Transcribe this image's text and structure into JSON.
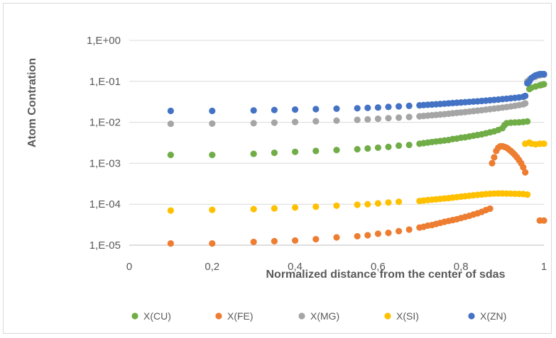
{
  "chart_data": {
    "type": "scatter",
    "xlabel": "Normalized distance from the center of sdas",
    "ylabel": "Atom Contration",
    "xlim": [
      0,
      1
    ],
    "ylim": [
      1e-05,
      1
    ],
    "yscale": "log",
    "x_ticks": [
      "0",
      "0,2",
      "0,4",
      "0,6",
      "0,8",
      "1"
    ],
    "x_tick_values": [
      0,
      0.2,
      0.4,
      0.6,
      0.8,
      1
    ],
    "y_ticks": [
      "1,E-05",
      "1,E-04",
      "1,E-03",
      "1,E-02",
      "1,E-01",
      "1,E+00"
    ],
    "y_tick_values": [
      1e-05,
      0.0001,
      0.001,
      0.01,
      0.1,
      1
    ],
    "grid": "horizontal",
    "legend_position": "bottom",
    "series": [
      {
        "name": "X(CU)",
        "color": "#70ad47",
        "points": [
          [
            0.1,
            0.0016
          ],
          [
            0.2,
            0.0016
          ],
          [
            0.3,
            0.0017
          ],
          [
            0.35,
            0.0018
          ],
          [
            0.4,
            0.0019
          ],
          [
            0.45,
            0.002
          ],
          [
            0.5,
            0.0021
          ],
          [
            0.55,
            0.0022
          ],
          [
            0.575,
            0.0023
          ],
          [
            0.6,
            0.0024
          ],
          [
            0.625,
            0.0025
          ],
          [
            0.65,
            0.0027
          ],
          [
            0.675,
            0.0028
          ],
          [
            0.7,
            0.003
          ],
          [
            0.71,
            0.0031
          ],
          [
            0.72,
            0.0032
          ],
          [
            0.73,
            0.0033
          ],
          [
            0.74,
            0.0034
          ],
          [
            0.75,
            0.0035
          ],
          [
            0.76,
            0.0036
          ],
          [
            0.77,
            0.0037
          ],
          [
            0.78,
            0.0039
          ],
          [
            0.79,
            0.004
          ],
          [
            0.8,
            0.0042
          ],
          [
            0.81,
            0.0043
          ],
          [
            0.82,
            0.0045
          ],
          [
            0.83,
            0.0047
          ],
          [
            0.84,
            0.0049
          ],
          [
            0.85,
            0.0051
          ],
          [
            0.86,
            0.0054
          ],
          [
            0.87,
            0.0057
          ],
          [
            0.88,
            0.006
          ],
          [
            0.89,
            0.0065
          ],
          [
            0.9,
            0.0072
          ],
          [
            0.905,
            0.0085
          ],
          [
            0.91,
            0.0095
          ],
          [
            0.92,
            0.0098
          ],
          [
            0.93,
            0.0099
          ],
          [
            0.94,
            0.01
          ],
          [
            0.95,
            0.0102
          ],
          [
            0.96,
            0.0105
          ],
          [
            0.965,
            0.065
          ],
          [
            0.97,
            0.07
          ],
          [
            0.98,
            0.075
          ],
          [
            0.99,
            0.08
          ],
          [
            0.995,
            0.082
          ],
          [
            1.0,
            0.085
          ]
        ]
      },
      {
        "name": "X(FE)",
        "color": "#ed7d31",
        "points": [
          [
            0.1,
            1.1e-05
          ],
          [
            0.2,
            1.1e-05
          ],
          [
            0.3,
            1.2e-05
          ],
          [
            0.35,
            1.25e-05
          ],
          [
            0.4,
            1.3e-05
          ],
          [
            0.45,
            1.4e-05
          ],
          [
            0.5,
            1.55e-05
          ],
          [
            0.55,
            1.65e-05
          ],
          [
            0.575,
            1.75e-05
          ],
          [
            0.6,
            1.9e-05
          ],
          [
            0.625,
            2e-05
          ],
          [
            0.65,
            2.2e-05
          ],
          [
            0.675,
            2.4e-05
          ],
          [
            0.7,
            2.7e-05
          ],
          [
            0.71,
            2.8e-05
          ],
          [
            0.72,
            3e-05
          ],
          [
            0.73,
            3.1e-05
          ],
          [
            0.74,
            3.3e-05
          ],
          [
            0.75,
            3.5e-05
          ],
          [
            0.76,
            3.7e-05
          ],
          [
            0.77,
            3.9e-05
          ],
          [
            0.78,
            4.1e-05
          ],
          [
            0.79,
            4.3e-05
          ],
          [
            0.8,
            4.6e-05
          ],
          [
            0.81,
            4.9e-05
          ],
          [
            0.82,
            5.2e-05
          ],
          [
            0.83,
            5.6e-05
          ],
          [
            0.84,
            6e-05
          ],
          [
            0.85,
            6.5e-05
          ],
          [
            0.86,
            7.2e-05
          ],
          [
            0.87,
            7.8e-05
          ],
          [
            0.875,
            0.001
          ],
          [
            0.88,
            0.0014
          ],
          [
            0.885,
            0.002
          ],
          [
            0.89,
            0.0024
          ],
          [
            0.895,
            0.0026
          ],
          [
            0.9,
            0.0026
          ],
          [
            0.905,
            0.0025
          ],
          [
            0.91,
            0.0024
          ],
          [
            0.915,
            0.0022
          ],
          [
            0.92,
            0.002
          ],
          [
            0.925,
            0.0018
          ],
          [
            0.93,
            0.0016
          ],
          [
            0.935,
            0.0014
          ],
          [
            0.94,
            0.0012
          ],
          [
            0.945,
            0.001
          ],
          [
            0.95,
            0.0008
          ],
          [
            0.955,
            0.0006
          ],
          [
            0.99,
            4e-05
          ],
          [
            1.0,
            4e-05
          ]
        ]
      },
      {
        "name": "X(MG)",
        "color": "#a5a5a5",
        "points": [
          [
            0.1,
            0.0092
          ],
          [
            0.2,
            0.0093
          ],
          [
            0.3,
            0.0095
          ],
          [
            0.35,
            0.0098
          ],
          [
            0.4,
            0.0102
          ],
          [
            0.45,
            0.0106
          ],
          [
            0.5,
            0.011
          ],
          [
            0.55,
            0.0115
          ],
          [
            0.575,
            0.0118
          ],
          [
            0.6,
            0.0122
          ],
          [
            0.625,
            0.0126
          ],
          [
            0.65,
            0.013
          ],
          [
            0.675,
            0.0135
          ],
          [
            0.7,
            0.014
          ],
          [
            0.71,
            0.0143
          ],
          [
            0.72,
            0.0146
          ],
          [
            0.73,
            0.0149
          ],
          [
            0.74,
            0.0152
          ],
          [
            0.75,
            0.0155
          ],
          [
            0.76,
            0.0158
          ],
          [
            0.77,
            0.0162
          ],
          [
            0.78,
            0.0166
          ],
          [
            0.79,
            0.017
          ],
          [
            0.8,
            0.0174
          ],
          [
            0.81,
            0.0178
          ],
          [
            0.82,
            0.0183
          ],
          [
            0.83,
            0.0188
          ],
          [
            0.84,
            0.0193
          ],
          [
            0.85,
            0.0198
          ],
          [
            0.86,
            0.0204
          ],
          [
            0.87,
            0.021
          ],
          [
            0.88,
            0.0216
          ],
          [
            0.89,
            0.0222
          ],
          [
            0.9,
            0.0229
          ],
          [
            0.91,
            0.0236
          ],
          [
            0.92,
            0.0244
          ],
          [
            0.93,
            0.0253
          ],
          [
            0.94,
            0.0263
          ],
          [
            0.95,
            0.0275
          ],
          [
            0.955,
            0.029
          ],
          [
            0.96,
            0.1
          ],
          [
            0.965,
            0.11
          ],
          [
            0.97,
            0.12
          ],
          [
            0.98,
            0.13
          ],
          [
            0.99,
            0.14
          ],
          [
            1.0,
            0.145
          ]
        ]
      },
      {
        "name": "X(SI)",
        "color": "#ffc000",
        "points": [
          [
            0.1,
            7e-05
          ],
          [
            0.2,
            7.3e-05
          ],
          [
            0.3,
            7.6e-05
          ],
          [
            0.35,
            7.9e-05
          ],
          [
            0.4,
            8.3e-05
          ],
          [
            0.45,
            8.7e-05
          ],
          [
            0.5,
            9.2e-05
          ],
          [
            0.55,
            9.7e-05
          ],
          [
            0.575,
            0.0001
          ],
          [
            0.6,
            0.000105
          ],
          [
            0.625,
            0.00011
          ],
          [
            0.65,
            0.000115
          ],
          [
            0.7,
            0.00012
          ],
          [
            0.71,
            0.000123
          ],
          [
            0.72,
            0.000126
          ],
          [
            0.73,
            0.000129
          ],
          [
            0.74,
            0.000132
          ],
          [
            0.75,
            0.000135
          ],
          [
            0.76,
            0.000138
          ],
          [
            0.77,
            0.000141
          ],
          [
            0.78,
            0.000145
          ],
          [
            0.79,
            0.000149
          ],
          [
            0.8,
            0.000153
          ],
          [
            0.81,
            0.000157
          ],
          [
            0.82,
            0.000161
          ],
          [
            0.83,
            0.000165
          ],
          [
            0.84,
            0.000169
          ],
          [
            0.85,
            0.000173
          ],
          [
            0.86,
            0.000177
          ],
          [
            0.87,
            0.00018
          ],
          [
            0.88,
            0.000182
          ],
          [
            0.89,
            0.000183
          ],
          [
            0.9,
            0.000183
          ],
          [
            0.91,
            0.000182
          ],
          [
            0.92,
            0.000181
          ],
          [
            0.93,
            0.00018
          ],
          [
            0.94,
            0.000179
          ],
          [
            0.95,
            0.000178
          ],
          [
            0.96,
            0.000172
          ],
          [
            0.955,
            0.003
          ],
          [
            0.965,
            0.0032
          ],
          [
            0.97,
            0.003
          ],
          [
            0.98,
            0.0029
          ],
          [
            0.99,
            0.003
          ],
          [
            1.0,
            0.003
          ]
        ]
      },
      {
        "name": "X(ZN)",
        "color": "#4472c4",
        "points": [
          [
            0.1,
            0.019
          ],
          [
            0.2,
            0.019
          ],
          [
            0.3,
            0.0195
          ],
          [
            0.35,
            0.02
          ],
          [
            0.4,
            0.0205
          ],
          [
            0.45,
            0.021
          ],
          [
            0.5,
            0.0215
          ],
          [
            0.55,
            0.022
          ],
          [
            0.575,
            0.0225
          ],
          [
            0.6,
            0.023
          ],
          [
            0.625,
            0.0238
          ],
          [
            0.65,
            0.0245
          ],
          [
            0.675,
            0.0252
          ],
          [
            0.7,
            0.026
          ],
          [
            0.71,
            0.0264
          ],
          [
            0.72,
            0.0268
          ],
          [
            0.73,
            0.0272
          ],
          [
            0.74,
            0.0276
          ],
          [
            0.75,
            0.028
          ],
          [
            0.76,
            0.0285
          ],
          [
            0.77,
            0.029
          ],
          [
            0.78,
            0.0295
          ],
          [
            0.79,
            0.03
          ],
          [
            0.8,
            0.0305
          ],
          [
            0.81,
            0.031
          ],
          [
            0.82,
            0.0315
          ],
          [
            0.83,
            0.032
          ],
          [
            0.84,
            0.0326
          ],
          [
            0.85,
            0.0332
          ],
          [
            0.86,
            0.0338
          ],
          [
            0.87,
            0.0345
          ],
          [
            0.88,
            0.0352
          ],
          [
            0.89,
            0.036
          ],
          [
            0.9,
            0.0368
          ],
          [
            0.91,
            0.0376
          ],
          [
            0.92,
            0.0385
          ],
          [
            0.93,
            0.0395
          ],
          [
            0.94,
            0.0405
          ],
          [
            0.95,
            0.042
          ],
          [
            0.955,
            0.044
          ],
          [
            0.96,
            0.09
          ],
          [
            0.965,
            0.1
          ],
          [
            0.97,
            0.12
          ],
          [
            0.975,
            0.13
          ],
          [
            0.98,
            0.14
          ],
          [
            0.985,
            0.145
          ],
          [
            0.99,
            0.15
          ],
          [
            0.995,
            0.15
          ],
          [
            1.0,
            0.15
          ]
        ]
      }
    ]
  }
}
